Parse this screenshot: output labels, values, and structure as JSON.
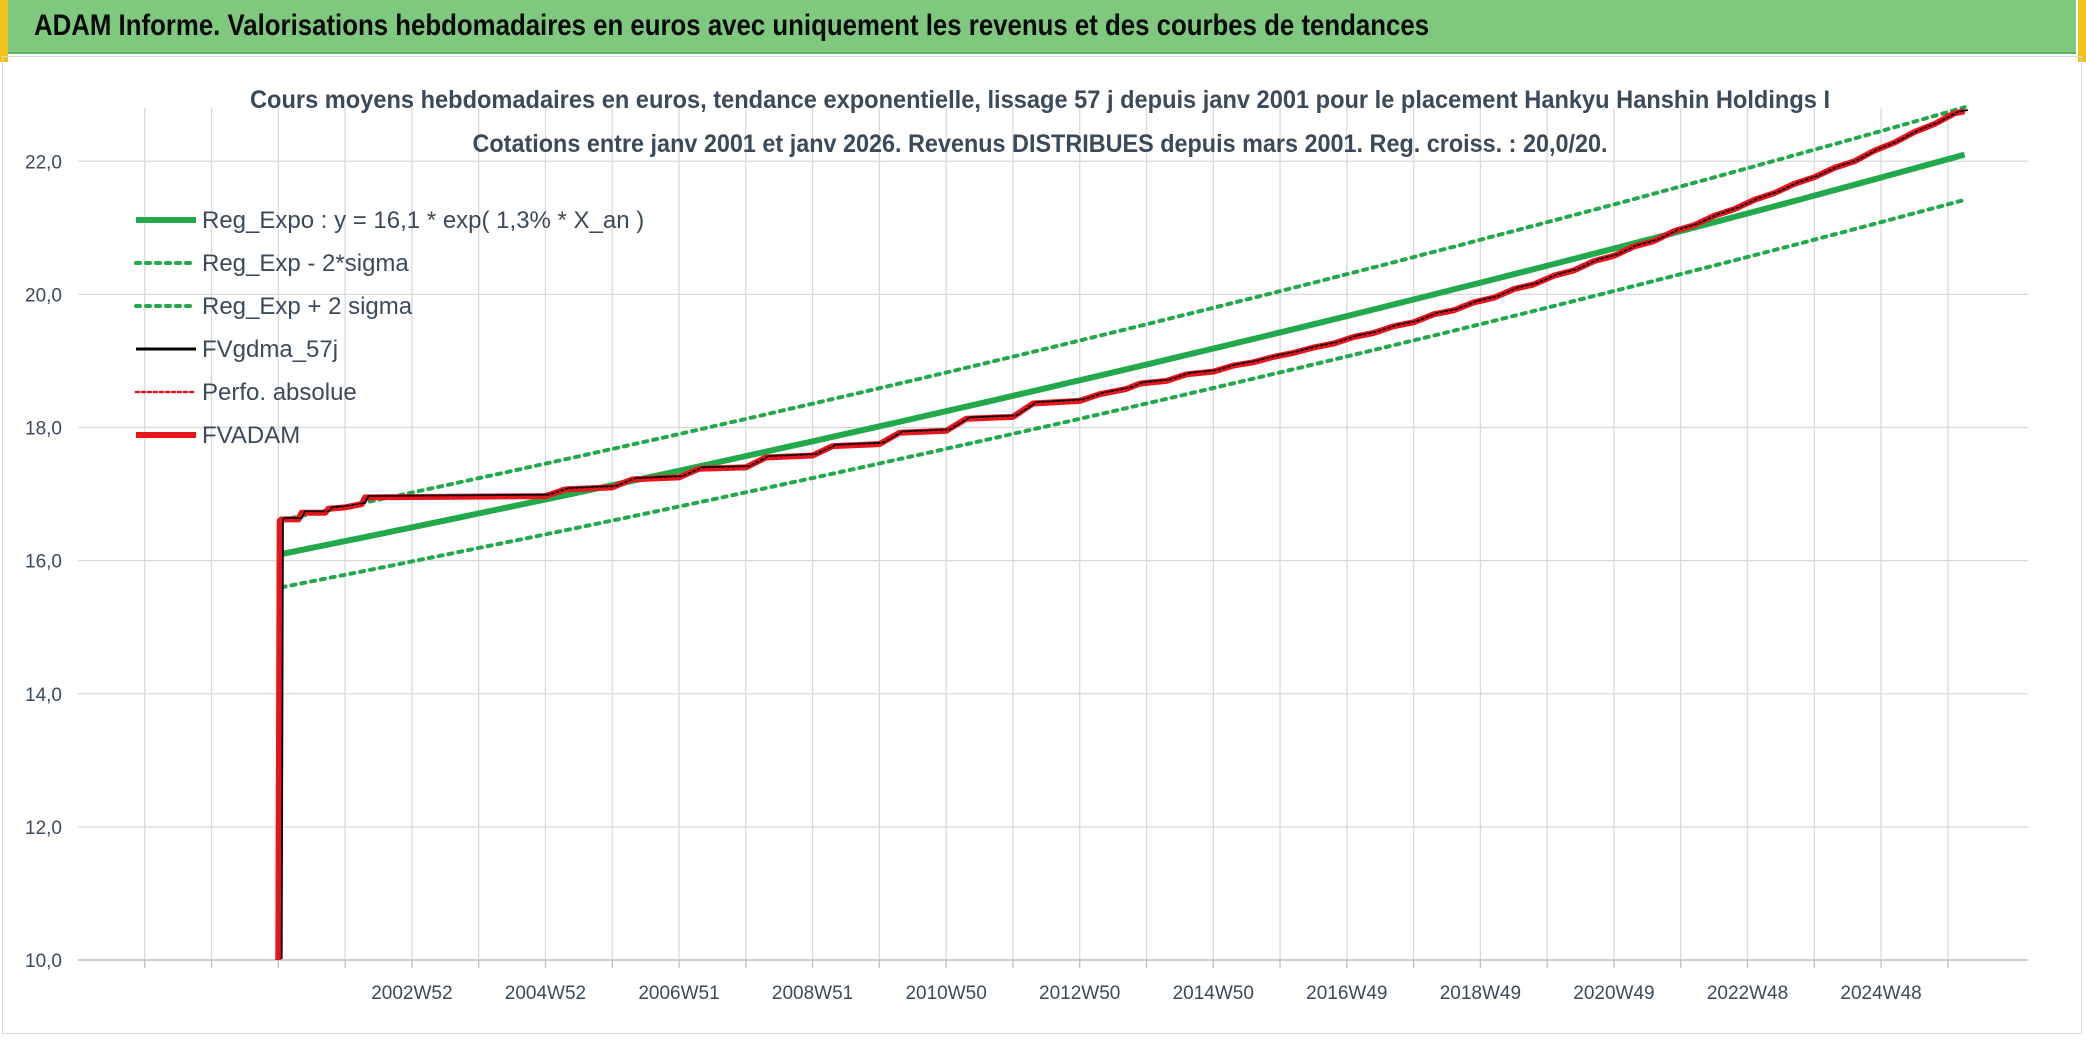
{
  "header": {
    "title": "ADAM Informe. Valorisations hebdomadaires en euros avec uniquement les revenus et des courbes de tendances"
  },
  "colors": {
    "header_bg": "#7fc97f",
    "frame_accent": "#f2c21b",
    "reg_expo": "#22a94b",
    "bands": "#22a94b",
    "fvgdma": "#000000",
    "perfo": "#e0141e",
    "fvadam": "#e8151b",
    "grid": "#d9d9d9",
    "text": "#3b4a5a"
  },
  "chart_data": {
    "type": "line",
    "title": "Cours moyens hebdomadaires en euros, tendance exponentielle, lissage 57 j depuis janv 2001 pour le placement Hankyu Hanshin Holdings I",
    "subtitle": "Cotations entre janv 2001 et janv 2026. Revenus DISTRIBUES depuis mars 2001. Reg. croiss. : 20,0/20.",
    "xlabel": "",
    "ylabel": "",
    "ylim": [
      10,
      22.8
    ],
    "y_ticks": [
      "10,0",
      "12,0",
      "14,0",
      "16,0",
      "18,0",
      "20,0",
      "22,0"
    ],
    "y_tick_values": [
      10,
      12,
      14,
      16,
      18,
      20,
      22
    ],
    "xlim": [
      1998,
      2027.2
    ],
    "x_ticks": [
      "2002W52",
      "2004W52",
      "2006W51",
      "2008W51",
      "2010W50",
      "2012W50",
      "2014W50",
      "2016W49",
      "2018W49",
      "2020W49",
      "2022W48",
      "2024W48"
    ],
    "x_tick_values": [
      2003,
      2005,
      2007,
      2009,
      2011,
      2013,
      2015,
      2017,
      2019,
      2021,
      2023,
      2025
    ],
    "x_grid_values": [
      1999,
      2000,
      2001,
      2002,
      2003,
      2004,
      2005,
      2006,
      2007,
      2008,
      2009,
      2010,
      2011,
      2012,
      2013,
      2014,
      2015,
      2016,
      2017,
      2018,
      2019,
      2020,
      2021,
      2022,
      2023,
      2024,
      2025,
      2026
    ],
    "grid": true,
    "legend_position": "top-left",
    "legend": [
      {
        "label": "Reg_Expo : y = 16,1 * exp( 1,3% *  X_an )",
        "style": "solid-thick",
        "color": "#22a94b"
      },
      {
        "label": "Reg_Exp - 2*sigma",
        "style": "dotted",
        "color": "#22a94b"
      },
      {
        "label": "Reg_Exp + 2 sigma",
        "style": "dotted",
        "color": "#22a94b"
      },
      {
        "label": "FVgdma_57j",
        "style": "solid",
        "color": "#000000"
      },
      {
        "label": "Perfo. absolue",
        "style": "dotted-thin",
        "color": "#e0141e"
      },
      {
        "label": "FVADAM",
        "style": "solid-thick",
        "color": "#e8151b"
      }
    ],
    "series": [
      {
        "name": "Reg_Expo : y = 16,1 * exp( 1,3% *  X_an )",
        "x": [
          2001.05,
          2026.25
        ],
        "y": [
          16.1,
          22.1
        ],
        "kind": "exponential"
      },
      {
        "name": "Reg_Exp - 2*sigma",
        "x": [
          2001.05,
          2026.25
        ],
        "y": [
          15.6,
          21.42
        ],
        "kind": "exponential"
      },
      {
        "name": "Reg_Exp + 2 sigma",
        "x": [
          2001.05,
          2026.25
        ],
        "y": [
          16.61,
          22.81
        ],
        "kind": "exponential"
      },
      {
        "name": "FVADAM",
        "x": [
          2001.0,
          2001.02,
          2001.05,
          2001.3,
          2001.35,
          2001.7,
          2001.75,
          2002.0,
          2002.25,
          2002.3,
          2005.0,
          2005.3,
          2006.0,
          2006.3,
          2007.0,
          2007.3,
          2008.0,
          2008.3,
          2009.0,
          2009.3,
          2010.0,
          2010.3,
          2011.0,
          2011.3,
          2012.0,
          2012.3,
          2013.0,
          2013.3,
          2013.7,
          2013.9,
          2014.3,
          2014.6,
          2015.0,
          2015.3,
          2015.6,
          2015.9,
          2016.2,
          2016.5,
          2016.8,
          2017.1,
          2017.4,
          2017.7,
          2018.0,
          2018.3,
          2018.6,
          2018.9,
          2019.2,
          2019.5,
          2019.8,
          2020.1,
          2020.4,
          2020.7,
          2021.0,
          2021.3,
          2021.6,
          2021.9,
          2022.2,
          2022.5,
          2022.8,
          2023.1,
          2023.4,
          2023.7,
          2024.0,
          2024.3,
          2024.6,
          2024.9,
          2025.2,
          2025.5,
          2025.8,
          2026.1,
          2026.25
        ],
        "y": [
          10.0,
          16.6,
          16.62,
          16.62,
          16.72,
          16.72,
          16.78,
          16.8,
          16.85,
          16.95,
          16.97,
          17.07,
          17.1,
          17.22,
          17.25,
          17.38,
          17.4,
          17.55,
          17.58,
          17.72,
          17.75,
          17.92,
          17.95,
          18.13,
          18.16,
          18.36,
          18.4,
          18.5,
          18.58,
          18.66,
          18.7,
          18.8,
          18.84,
          18.93,
          18.98,
          19.06,
          19.12,
          19.2,
          19.26,
          19.36,
          19.42,
          19.52,
          19.58,
          19.7,
          19.76,
          19.88,
          19.95,
          20.08,
          20.15,
          20.28,
          20.36,
          20.5,
          20.58,
          20.72,
          20.8,
          20.95,
          21.04,
          21.18,
          21.28,
          21.42,
          21.52,
          21.66,
          21.76,
          21.9,
          22.0,
          22.16,
          22.28,
          22.44,
          22.56,
          22.72,
          22.75
        ]
      }
    ]
  }
}
